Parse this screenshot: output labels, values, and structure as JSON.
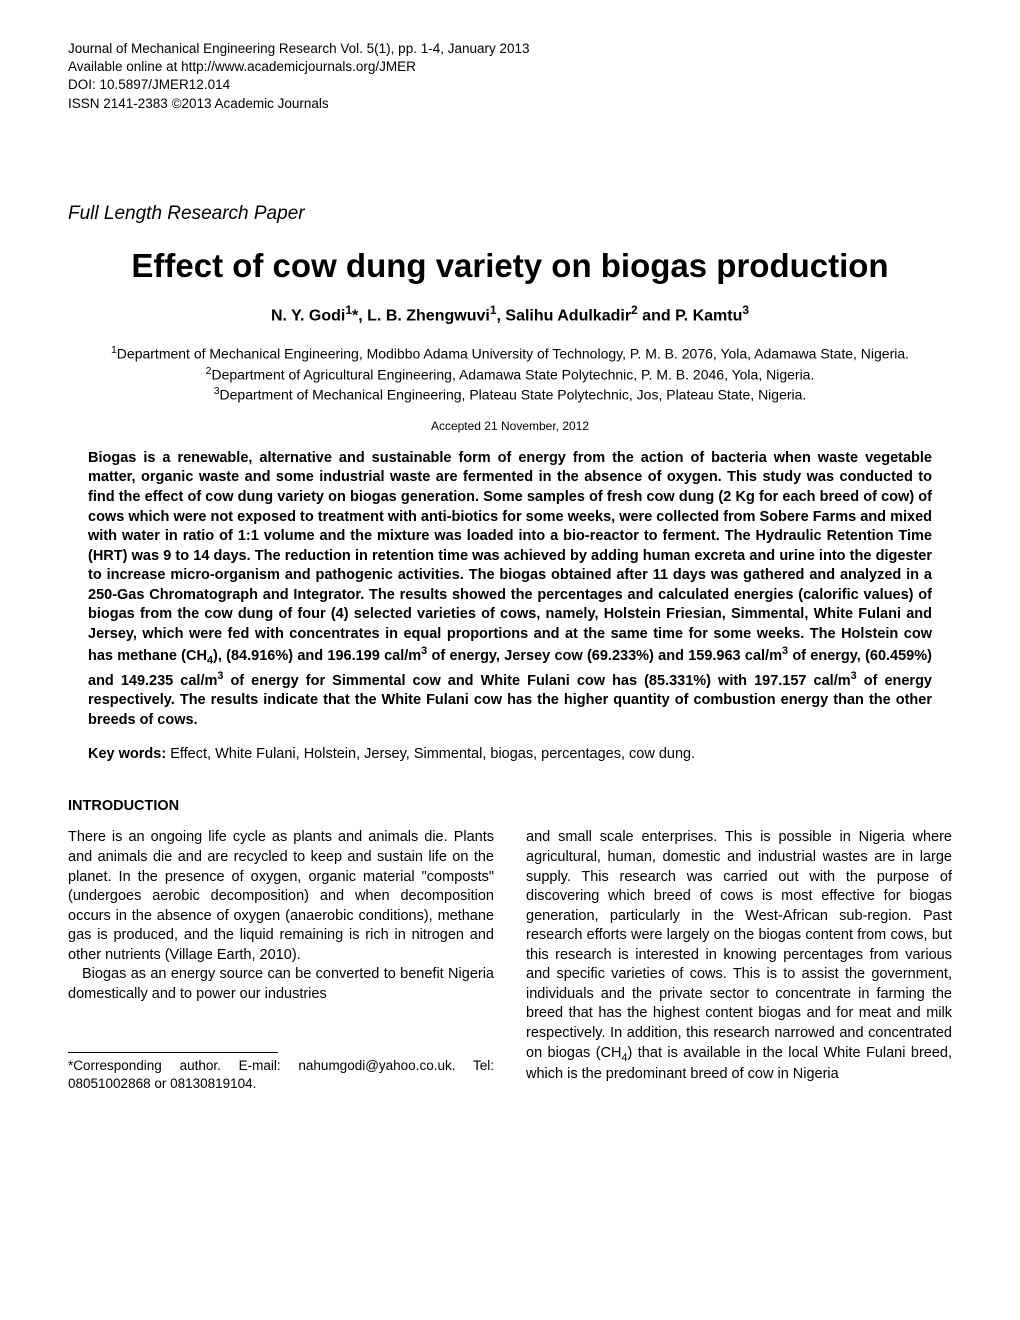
{
  "header": {
    "line1": "Journal of Mechanical Engineering Research Vol. 5(1), pp. 1-4, January 2013",
    "line2": "Available online at http://www.academicjournals.org/JMER",
    "line3": "DOI: 10.5897/JMER12.014",
    "line4": "ISSN 2141-2383 ©2013 Academic Journals"
  },
  "paper_type": "Full Length Research Paper",
  "title": "Effect of cow dung variety on biogas production",
  "authors_html": "N. Y. Godi<sup>1</sup>*, L. B. Zhengwuvi<sup>1</sup>, Salihu Adulkadir<sup>2</sup> and P. Kamtu<sup>3</sup>",
  "affiliations_html": "<sup>1</sup>Department of Mechanical Engineering, Modibbo Adama University of Technology, P. M. B. 2076, Yola, Adamawa State, Nigeria.<br><sup>2</sup>Department of Agricultural Engineering, Adamawa State Polytechnic, P. M. B. 2046, Yola, Nigeria.<br><sup>3</sup>Department of Mechanical Engineering, Plateau State Polytechnic, Jos, Plateau State, Nigeria.",
  "accepted": "Accepted 21 November, 2012",
  "abstract_html": "Biogas is a renewable, alternative and sustainable form of energy from the action of bacteria when waste vegetable matter, organic waste and some industrial waste are fermented in the absence of oxygen. This study was conducted to find the effect of cow dung variety on biogas generation. Some samples of fresh cow dung (2 Kg for each breed of cow) of cows which were not exposed to treatment with anti-biotics for some weeks, were collected from Sobere Farms and mixed with water in ratio of 1:1 volume and the mixture was loaded into a bio-reactor to ferment. The Hydraulic Retention Time (HRT) was 9 to 14 days. The reduction in retention time was achieved by adding human excreta and urine into the digester to increase micro-organism and pathogenic activities. The biogas obtained after 11 days was gathered and analyzed in a 250-Gas Chromatograph and Integrator. The results showed the percentages and calculated energies (calorific values) of biogas from the cow dung of four (4) selected varieties of cows, namely, Holstein Friesian, Simmental, White Fulani and Jersey, which were fed with concentrates in equal proportions and at the same time for some weeks. The Holstein cow has methane (CH<sub>4</sub>), (84.916%) and 196.199 cal/m<sup>3</sup> of energy, Jersey cow (69.233%) and 159.963 cal/m<sup>3</sup> of energy, (60.459%) and 149.235 cal/m<sup>3</sup> of energy for Simmental cow and White Fulani cow has (85.331%) with 197.157 cal/m<sup>3</sup> of energy respectively. The results indicate that the White Fulani cow has the higher quantity of combustion energy than the other breeds of cows.",
  "keywords_label": "Key words:",
  "keywords_text": " Effect, White Fulani, Holstein, Jersey, Simmental, biogas, percentages, cow dung.",
  "section_heading": "INTRODUCTION",
  "col1_p1": "There is an ongoing life cycle as plants and animals die. Plants and animals die and are recycled to keep and sustain life on the planet. In the presence of oxygen, organic material \"composts\" (undergoes aerobic decomposition) and when decomposition occurs in the absence of oxygen (anaerobic conditions), methane gas is produced, and the liquid remaining is rich in nitrogen and other nutrients (Village Earth, 2010).",
  "col1_p2": "Biogas as an energy source can be converted to benefit Nigeria domestically and to power  our  industries",
  "footnote": "*Corresponding author. E-mail: nahumgodi@yahoo.co.uk. Tel: 08051002868 or 08130819104.",
  "col2_p1_html": "and small scale enterprises. This is possible in Nigeria where agricultural, human, domestic and industrial wastes are in large supply. This research was carried out with the purpose of discovering which breed of cows is most effective for biogas generation, particularly in the West-African sub-region. Past research efforts were largely on the biogas content from cows, but this research is interested in knowing percentages from various and specific varieties of cows. This is to assist the government, individuals and the private sector to concentrate in farming the breed that has the highest content biogas and for meat and milk respectively. In addition, this research narrowed and concentrated on biogas (CH<sub>4</sub>) that is available in the local White Fulani breed, which is the predominant breed of  cow  in  Nigeria"
}
